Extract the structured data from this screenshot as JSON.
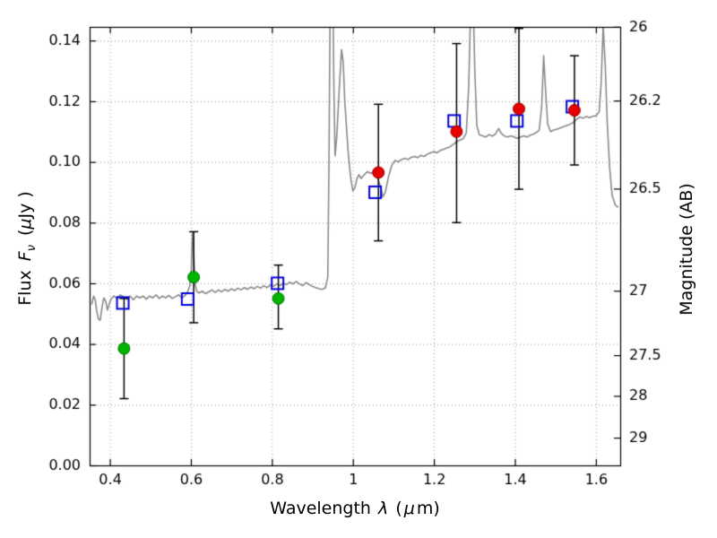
{
  "figure": {
    "background": "#ffffff",
    "frame_color": "#000000",
    "grid_color": "#9a9a9a"
  },
  "axis_titles": {
    "x_prefix": "Wavelength",
    "x_lambda": "λ",
    "x_paren_open": "(",
    "x_mu": "μ",
    "x_paren_close": "m)",
    "y_left_word": "Flux",
    "y_left_symbol": "F",
    "y_left_subscript": "ν",
    "y_left_open": "(",
    "y_left_mu": "μ",
    "y_left_close": "Jy )",
    "y_right": "Magnitude (AB)"
  },
  "chart_data": {
    "type": "line",
    "title": "",
    "xlabel": "Wavelength λ (μm)",
    "ylabel": "Flux Fν ( μJy )",
    "ylabel_right": "Magnitude (AB)",
    "xlim": [
      0.35,
      1.66
    ],
    "ylim": [
      0.0,
      0.1445
    ],
    "grid": true,
    "grid_style": "dotted",
    "legend": "none",
    "x_ticks": [
      {
        "v": 0.4,
        "label": "0.4"
      },
      {
        "v": 0.6,
        "label": "0.6"
      },
      {
        "v": 0.8,
        "label": "0.8"
      },
      {
        "v": 1.0,
        "label": "1"
      },
      {
        "v": 1.2,
        "label": "1.2"
      },
      {
        "v": 1.4,
        "label": "1.4"
      },
      {
        "v": 1.6,
        "label": "1.6"
      }
    ],
    "y_ticks_left": [
      {
        "v": 0.0,
        "label": "0.00"
      },
      {
        "v": 0.02,
        "label": "0.02"
      },
      {
        "v": 0.04,
        "label": "0.04"
      },
      {
        "v": 0.06,
        "label": "0.06"
      },
      {
        "v": 0.08,
        "label": "0.08"
      },
      {
        "v": 0.1,
        "label": "0.10"
      },
      {
        "v": 0.12,
        "label": "0.12"
      },
      {
        "v": 0.14,
        "label": "0.14"
      }
    ],
    "y_ticks_right": [
      {
        "mag": 26,
        "flux": 0.144544,
        "label": "26"
      },
      {
        "mag": 26.2,
        "flux": 0.120226,
        "label": "26.2"
      },
      {
        "mag": 26.5,
        "flux": 0.091201,
        "label": "26.5"
      },
      {
        "mag": 27,
        "flux": 0.057544,
        "label": "27"
      },
      {
        "mag": 27.5,
        "flux": 0.036308,
        "label": "27.5"
      },
      {
        "mag": 28,
        "flux": 0.022909,
        "label": "28"
      },
      {
        "mag": 29,
        "flux": 0.00912,
        "label": "29"
      }
    ],
    "spectrum": {
      "name": "model spectrum (gray line)",
      "color": "#8a8a8a",
      "linewidth": 1.6,
      "points": [
        [
          0.355,
          0.053
        ],
        [
          0.36,
          0.0558
        ],
        [
          0.364,
          0.0545
        ],
        [
          0.368,
          0.0505
        ],
        [
          0.372,
          0.0482
        ],
        [
          0.376,
          0.0478
        ],
        [
          0.38,
          0.0515
        ],
        [
          0.385,
          0.0552
        ],
        [
          0.39,
          0.054
        ],
        [
          0.394,
          0.0512
        ],
        [
          0.398,
          0.053
        ],
        [
          0.403,
          0.0548
        ],
        [
          0.41,
          0.0558
        ],
        [
          0.418,
          0.055
        ],
        [
          0.426,
          0.0562
        ],
        [
          0.434,
          0.0555
        ],
        [
          0.442,
          0.0548
        ],
        [
          0.45,
          0.0558
        ],
        [
          0.458,
          0.0546
        ],
        [
          0.466,
          0.0558
        ],
        [
          0.474,
          0.0552
        ],
        [
          0.482,
          0.0558
        ],
        [
          0.49,
          0.0548
        ],
        [
          0.498,
          0.0558
        ],
        [
          0.506,
          0.0552
        ],
        [
          0.514,
          0.0562
        ],
        [
          0.522,
          0.055
        ],
        [
          0.53,
          0.0558
        ],
        [
          0.538,
          0.0552
        ],
        [
          0.546,
          0.056
        ],
        [
          0.554,
          0.055
        ],
        [
          0.562,
          0.0556
        ],
        [
          0.57,
          0.0562
        ],
        [
          0.578,
          0.0552
        ],
        [
          0.586,
          0.056
        ],
        [
          0.592,
          0.0572
        ],
        [
          0.597,
          0.059
        ],
        [
          0.601,
          0.0645
        ],
        [
          0.604,
          0.077
        ],
        [
          0.607,
          0.07
        ],
        [
          0.61,
          0.06
        ],
        [
          0.614,
          0.0575
        ],
        [
          0.62,
          0.0568
        ],
        [
          0.628,
          0.0574
        ],
        [
          0.636,
          0.0566
        ],
        [
          0.644,
          0.0572
        ],
        [
          0.652,
          0.0578
        ],
        [
          0.66,
          0.057
        ],
        [
          0.668,
          0.0578
        ],
        [
          0.676,
          0.0572
        ],
        [
          0.684,
          0.058
        ],
        [
          0.692,
          0.0574
        ],
        [
          0.7,
          0.0582
        ],
        [
          0.708,
          0.0576
        ],
        [
          0.716,
          0.0584
        ],
        [
          0.724,
          0.0578
        ],
        [
          0.732,
          0.0586
        ],
        [
          0.74,
          0.058
        ],
        [
          0.748,
          0.0588
        ],
        [
          0.756,
          0.0582
        ],
        [
          0.764,
          0.059
        ],
        [
          0.772,
          0.0584
        ],
        [
          0.78,
          0.0592
        ],
        [
          0.788,
          0.0586
        ],
        [
          0.796,
          0.0594
        ],
        [
          0.804,
          0.059
        ],
        [
          0.812,
          0.0598
        ],
        [
          0.82,
          0.0592
        ],
        [
          0.828,
          0.06
        ],
        [
          0.836,
          0.0596
        ],
        [
          0.844,
          0.0604
        ],
        [
          0.852,
          0.0598
        ],
        [
          0.86,
          0.0606
        ],
        [
          0.868,
          0.0598
        ],
        [
          0.876,
          0.0592
        ],
        [
          0.884,
          0.0602
        ],
        [
          0.892,
          0.0596
        ],
        [
          0.9,
          0.059
        ],
        [
          0.908,
          0.0586
        ],
        [
          0.916,
          0.0582
        ],
        [
          0.924,
          0.058
        ],
        [
          0.932,
          0.0585
        ],
        [
          0.938,
          0.062
        ],
        [
          0.941,
          0.1
        ],
        [
          0.944,
          0.155
        ],
        [
          0.947,
          0.17
        ],
        [
          0.95,
          0.165
        ],
        [
          0.953,
          0.125
        ],
        [
          0.956,
          0.102
        ],
        [
          0.96,
          0.108
        ],
        [
          0.964,
          0.118
        ],
        [
          0.968,
          0.128
        ],
        [
          0.972,
          0.137
        ],
        [
          0.976,
          0.133
        ],
        [
          0.98,
          0.12
        ],
        [
          0.984,
          0.112
        ],
        [
          0.988,
          0.104
        ],
        [
          0.992,
          0.098
        ],
        [
          0.996,
          0.0935
        ],
        [
          1.0,
          0.0905
        ],
        [
          1.005,
          0.0915
        ],
        [
          1.01,
          0.0945
        ],
        [
          1.015,
          0.0958
        ],
        [
          1.02,
          0.0945
        ],
        [
          1.028,
          0.0958
        ],
        [
          1.036,
          0.0968
        ],
        [
          1.044,
          0.0962
        ],
        [
          1.052,
          0.0968
        ],
        [
          1.06,
          0.0952
        ],
        [
          1.068,
          0.092
        ],
        [
          1.074,
          0.0885
        ],
        [
          1.08,
          0.09
        ],
        [
          1.088,
          0.0952
        ],
        [
          1.096,
          0.0988
        ],
        [
          1.104,
          0.1005
        ],
        [
          1.112,
          0.1
        ],
        [
          1.12,
          0.1008
        ],
        [
          1.128,
          0.1012
        ],
        [
          1.136,
          0.1008
        ],
        [
          1.144,
          0.1015
        ],
        [
          1.152,
          0.1018
        ],
        [
          1.16,
          0.1014
        ],
        [
          1.168,
          0.1022
        ],
        [
          1.176,
          0.1018
        ],
        [
          1.184,
          0.1026
        ],
        [
          1.192,
          0.103
        ],
        [
          1.2,
          0.1034
        ],
        [
          1.208,
          0.103
        ],
        [
          1.216,
          0.1038
        ],
        [
          1.224,
          0.1042
        ],
        [
          1.232,
          0.1046
        ],
        [
          1.24,
          0.105
        ],
        [
          1.248,
          0.1058
        ],
        [
          1.256,
          0.1066
        ],
        [
          1.264,
          0.1072
        ],
        [
          1.272,
          0.1076
        ],
        [
          1.28,
          0.1095
        ],
        [
          1.286,
          0.125
        ],
        [
          1.291,
          0.152
        ],
        [
          1.296,
          0.16
        ],
        [
          1.301,
          0.13
        ],
        [
          1.306,
          0.112
        ],
        [
          1.312,
          0.109
        ],
        [
          1.32,
          0.1086
        ],
        [
          1.328,
          0.1082
        ],
        [
          1.336,
          0.109
        ],
        [
          1.344,
          0.1085
        ],
        [
          1.352,
          0.1092
        ],
        [
          1.36,
          0.111
        ],
        [
          1.366,
          0.1095
        ],
        [
          1.374,
          0.1085
        ],
        [
          1.382,
          0.1082
        ],
        [
          1.39,
          0.1086
        ],
        [
          1.398,
          0.1082
        ],
        [
          1.406,
          0.1078
        ],
        [
          1.414,
          0.1082
        ],
        [
          1.422,
          0.1086
        ],
        [
          1.43,
          0.1082
        ],
        [
          1.438,
          0.1088
        ],
        [
          1.446,
          0.1092
        ],
        [
          1.454,
          0.1098
        ],
        [
          1.46,
          0.1105
        ],
        [
          1.466,
          0.118
        ],
        [
          1.471,
          0.135
        ],
        [
          1.476,
          0.123
        ],
        [
          1.481,
          0.1125
        ],
        [
          1.488,
          0.11
        ],
        [
          1.496,
          0.1105
        ],
        [
          1.504,
          0.1108
        ],
        [
          1.512,
          0.1112
        ],
        [
          1.52,
          0.1116
        ],
        [
          1.528,
          0.112
        ],
        [
          1.536,
          0.1124
        ],
        [
          1.544,
          0.113
        ],
        [
          1.552,
          0.114
        ],
        [
          1.56,
          0.1148
        ],
        [
          1.568,
          0.1144
        ],
        [
          1.576,
          0.115
        ],
        [
          1.584,
          0.1146
        ],
        [
          1.592,
          0.115
        ],
        [
          1.6,
          0.1152
        ],
        [
          1.608,
          0.1165
        ],
        [
          1.613,
          0.126
        ],
        [
          1.618,
          0.145
        ],
        [
          1.623,
          0.132
        ],
        [
          1.628,
          0.113
        ],
        [
          1.634,
          0.098
        ],
        [
          1.64,
          0.089
        ],
        [
          1.648,
          0.0858
        ],
        [
          1.655,
          0.085
        ]
      ]
    },
    "series": [
      {
        "name": "green filled circles (observed optical photometry)",
        "marker": "circle",
        "color": "#00b400",
        "edge": "#007700",
        "errorbar_color": "#000000",
        "points": [
          {
            "x": 0.435,
            "y": 0.0385,
            "yerr_minus": 0.0165,
            "yerr_plus": 0.0165
          },
          {
            "x": 0.607,
            "y": 0.062,
            "yerr_minus": 0.015,
            "yerr_plus": 0.015
          },
          {
            "x": 0.816,
            "y": 0.055,
            "yerr_minus": 0.01,
            "yerr_plus": 0.011
          }
        ]
      },
      {
        "name": "red filled circles (observed near-IR photometry)",
        "marker": "circle",
        "color": "#e60000",
        "edge": "#990000",
        "errorbar_color": "#000000",
        "points": [
          {
            "x": 1.063,
            "y": 0.0965,
            "yerr_minus": 0.0225,
            "yerr_plus": 0.0225
          },
          {
            "x": 1.256,
            "y": 0.11,
            "yerr_minus": 0.03,
            "yerr_plus": 0.029
          },
          {
            "x": 1.41,
            "y": 0.1175,
            "yerr_minus": 0.0265,
            "yerr_plus": 0.0265
          },
          {
            "x": 1.547,
            "y": 0.117,
            "yerr_minus": 0.018,
            "yerr_plus": 0.018
          }
        ]
      },
      {
        "name": "blue open squares (model photometry)",
        "marker": "square-open",
        "color": "#0000dd",
        "points": [
          {
            "x": 0.432,
            "y": 0.0535
          },
          {
            "x": 0.592,
            "y": 0.0548
          },
          {
            "x": 0.814,
            "y": 0.06
          },
          {
            "x": 1.055,
            "y": 0.09
          },
          {
            "x": 1.25,
            "y": 0.1135
          },
          {
            "x": 1.405,
            "y": 0.1135
          },
          {
            "x": 1.542,
            "y": 0.1182
          }
        ]
      }
    ]
  }
}
